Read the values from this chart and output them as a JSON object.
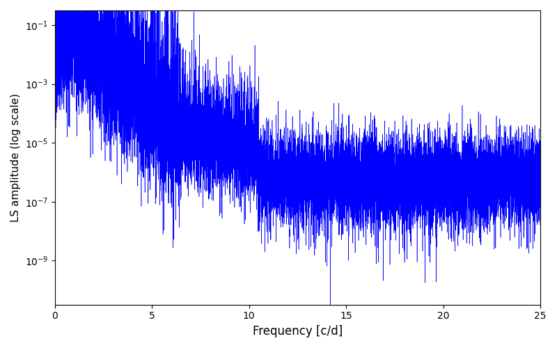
{
  "xlabel": "Frequency [c/d]",
  "ylabel": "LS amplitude (log scale)",
  "xlim": [
    0,
    25
  ],
  "ylim_log": [
    -10.5,
    -0.5
  ],
  "line_color": "blue",
  "background_color": "#ffffff",
  "freq_max": 25,
  "n_points": 15000,
  "seed": 7
}
